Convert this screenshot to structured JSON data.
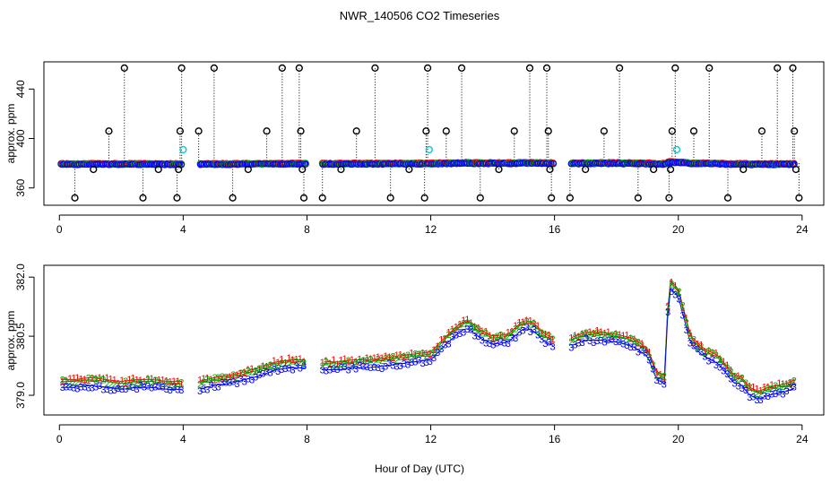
{
  "chart_data": {
    "type": "scatter",
    "title": "NWR_140506  CO2 Timeseries",
    "xlabel": "Hour of Day (UTC)",
    "xlim": [
      -0.5,
      24.7
    ],
    "x_ticks": [
      "0",
      "4",
      "8",
      "12",
      "16",
      "20",
      "24"
    ],
    "colors": {
      "series1": "#ff0000",
      "series2": "#00aa00",
      "series3": "#0000ff",
      "outlier": "#000000",
      "flagged": "#00cccc"
    },
    "panels": [
      {
        "name": "raw-panel",
        "ylabel": "approx. ppm",
        "ylim": [
          346,
          462
        ],
        "y_ticks": [
          "360",
          "400",
          "440"
        ],
        "series_symbol": "open circles",
        "series": [
          {
            "name": "series1",
            "symbol": "o"
          },
          {
            "name": "series2",
            "symbol": "o"
          },
          {
            "name": "series3",
            "symbol": "o"
          }
        ],
        "outliers": [
          [
            0.5,
            352
          ],
          [
            1.1,
            375
          ],
          [
            1.6,
            406
          ],
          [
            2.1,
            457
          ],
          [
            2.7,
            352
          ],
          [
            3.2,
            375
          ],
          [
            3.8,
            352
          ],
          [
            3.85,
            375
          ],
          [
            3.9,
            406
          ],
          [
            3.95,
            457
          ],
          [
            4.5,
            406
          ],
          [
            5.0,
            457
          ],
          [
            5.6,
            352
          ],
          [
            6.1,
            375
          ],
          [
            6.7,
            406
          ],
          [
            7.2,
            457
          ],
          [
            7.75,
            457
          ],
          [
            7.8,
            406
          ],
          [
            7.85,
            375
          ],
          [
            7.9,
            352
          ],
          [
            8.5,
            352
          ],
          [
            9.1,
            375
          ],
          [
            9.6,
            406
          ],
          [
            10.2,
            457
          ],
          [
            10.7,
            352
          ],
          [
            11.3,
            375
          ],
          [
            11.8,
            352
          ],
          [
            11.85,
            406
          ],
          [
            11.9,
            457
          ],
          [
            12.5,
            406
          ],
          [
            13.0,
            457
          ],
          [
            13.6,
            352
          ],
          [
            14.2,
            375
          ],
          [
            14.7,
            406
          ],
          [
            15.2,
            457
          ],
          [
            15.75,
            457
          ],
          [
            15.8,
            406
          ],
          [
            15.85,
            375
          ],
          [
            15.9,
            352
          ],
          [
            16.5,
            352
          ],
          [
            17.0,
            375
          ],
          [
            17.6,
            406
          ],
          [
            18.1,
            457
          ],
          [
            18.7,
            352
          ],
          [
            19.2,
            375
          ],
          [
            19.7,
            352
          ],
          [
            19.75,
            375
          ],
          [
            19.8,
            406
          ],
          [
            19.9,
            457
          ],
          [
            20.5,
            406
          ],
          [
            21.0,
            457
          ],
          [
            21.6,
            352
          ],
          [
            22.1,
            375
          ],
          [
            22.7,
            406
          ],
          [
            23.2,
            457
          ],
          [
            23.7,
            457
          ],
          [
            23.75,
            406
          ],
          [
            23.8,
            375
          ],
          [
            23.9,
            352
          ]
        ],
        "flagged_points": [
          [
            4.0,
            391
          ],
          [
            11.95,
            391
          ],
          [
            19.95,
            391
          ]
        ]
      },
      {
        "name": "averaged-panel",
        "ylabel": "approx. ppm",
        "ylim": [
          378.5,
          382.3
        ],
        "y_ticks": [
          "379.0",
          "380.5",
          "382.0"
        ],
        "series": [
          {
            "name": "series1",
            "symbol": "1"
          },
          {
            "name": "series2",
            "symbol": "2"
          },
          {
            "name": "series3",
            "symbol": "3"
          }
        ],
        "profile_hours": [
          0,
          0.5,
          1,
          1.5,
          2,
          2.5,
          3,
          3.5,
          3.99,
          4.0,
          4.5,
          5,
          5.5,
          6,
          6.5,
          7,
          7.5,
          7.99,
          8.0,
          8.5,
          9,
          9.5,
          10,
          10.5,
          11,
          11.5,
          12,
          12.5,
          13,
          13.2,
          13.6,
          14,
          14.5,
          15,
          15.3,
          15.7,
          15.99,
          16.0,
          16.5,
          17,
          17.5,
          18,
          18.5,
          19,
          19.3,
          19.55,
          19.7,
          20.0,
          20.2,
          20.4,
          20.8,
          21.3,
          21.6,
          21.8,
          22.0,
          22.3,
          22.6,
          22.9,
          23.2,
          23.5,
          23.8
        ],
        "profile_ppm": [
          379.3,
          379.3,
          379.35,
          379.3,
          379.25,
          379.3,
          379.3,
          379.25,
          379.25,
          null,
          379.25,
          379.35,
          379.4,
          379.5,
          379.6,
          379.75,
          379.8,
          379.8,
          null,
          379.75,
          379.75,
          379.8,
          379.8,
          379.85,
          379.9,
          379.95,
          380.0,
          380.4,
          380.75,
          380.8,
          380.55,
          380.4,
          380.45,
          380.8,
          380.75,
          380.45,
          380.35,
          null,
          380.35,
          380.5,
          380.5,
          380.45,
          380.35,
          380.1,
          379.5,
          379.4,
          381.85,
          381.6,
          381.0,
          380.4,
          380.1,
          379.9,
          379.6,
          379.4,
          379.4,
          379.1,
          379.0,
          379.1,
          379.15,
          379.2,
          379.3
        ]
      }
    ]
  }
}
